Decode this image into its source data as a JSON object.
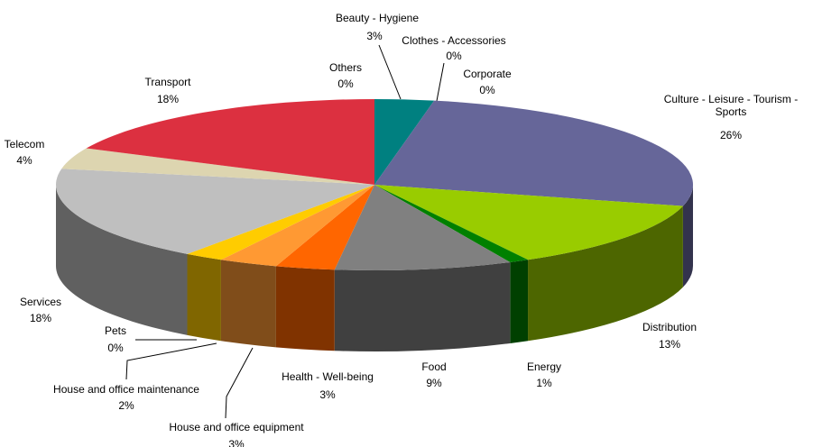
{
  "chart_data": {
    "type": "pie",
    "categories": [
      "Beauty - Hygiene",
      "Clothes - Accessories",
      "Corporate",
      "Culture - Leisure - Tourism - Sports",
      "Distribution",
      "Energy",
      "Food",
      "Health - Well-being",
      "House and office equipment",
      "House and office maintenance",
      "Pets",
      "Services",
      "Telecom",
      "Transport",
      "Others"
    ],
    "values": [
      3,
      0,
      0,
      26,
      13,
      1,
      9,
      3,
      3,
      2,
      0,
      18,
      4,
      18,
      0
    ],
    "value_labels": [
      "3%",
      "0%",
      "0%",
      "26%",
      "13%",
      "1%",
      "9%",
      "3%",
      "3%",
      "2%",
      "0%",
      "18%",
      "4%",
      "18%",
      "0%"
    ],
    "colors": [
      "#008080",
      "#ff00ff",
      "#00ffff",
      "#666699",
      "#99cc00",
      "#008000",
      "#808080",
      "#ff6600",
      "#ff9933",
      "#ffcc00",
      "#ffff00",
      "#bfbfbf",
      "#ddd5b0",
      "#dc3040",
      "#ffffff"
    ]
  }
}
